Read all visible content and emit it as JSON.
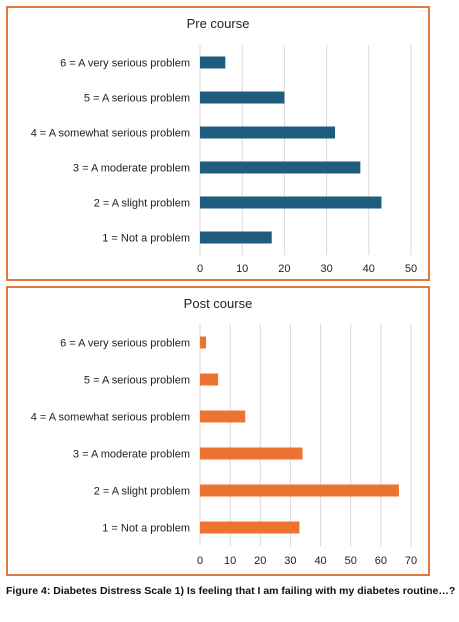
{
  "chart_data": [
    {
      "type": "bar",
      "orientation": "horizontal",
      "title": "Pre course",
      "categories": [
        "6 = A very serious problem",
        "5 = A serious problem",
        "4 = A somewhat serious problem",
        "3 = A moderate problem",
        "2 = A slight problem",
        "1 = Not a problem"
      ],
      "values": [
        6,
        20,
        32,
        38,
        43,
        17
      ],
      "xlim": [
        0,
        50
      ],
      "xticks": [
        0,
        10,
        20,
        30,
        40,
        50
      ],
      "bar_color": "#1f5c7f",
      "grid": true
    },
    {
      "type": "bar",
      "orientation": "horizontal",
      "title": "Post course",
      "categories": [
        "6 = A very serious problem",
        "5 = A serious problem",
        "4 = A somewhat serious problem",
        "3 = A moderate problem",
        "2 = A slight problem",
        "1 = Not a problem"
      ],
      "values": [
        2,
        6,
        15,
        34,
        66,
        33
      ],
      "xlim": [
        0,
        70
      ],
      "xticks": [
        0,
        10,
        20,
        30,
        40,
        50,
        60,
        70
      ],
      "bar_color": "#ed7331",
      "grid": true
    }
  ],
  "caption": "Figure 4: Diabetes Distress Scale 1) Is feeling that I am failing with my diabetes routine…?",
  "colors": {
    "border": "#e07a3c"
  }
}
